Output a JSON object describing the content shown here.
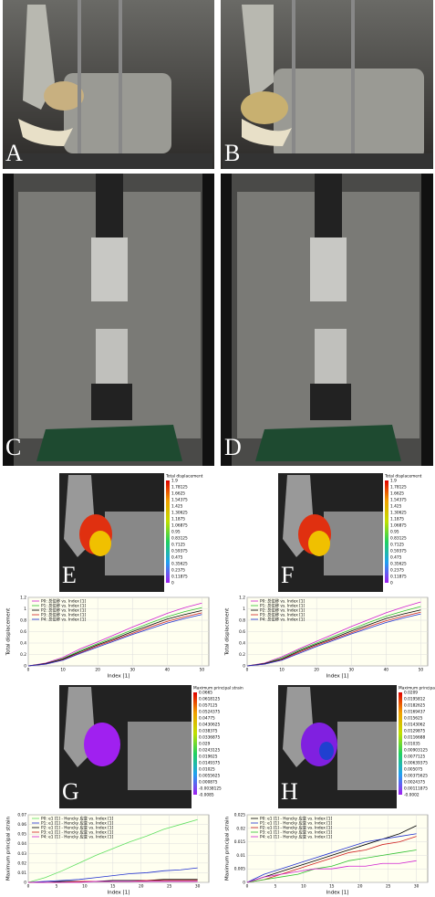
{
  "panels": [
    {
      "label": "A"
    },
    {
      "label": "B"
    },
    {
      "label": "C"
    },
    {
      "label": "D"
    },
    {
      "label": "E"
    },
    {
      "label": "F"
    },
    {
      "label": "G"
    },
    {
      "label": "H"
    }
  ],
  "colorbars": [
    {
      "title": "Total displacement",
      "labels": [
        1.9,
        1.78125,
        1.6625,
        1.54375,
        1.425,
        1.30625,
        1.1875,
        1.06875,
        0.95,
        0.83125,
        0.7125,
        0.59375,
        0.475,
        0.35625,
        0.2375,
        0.11875,
        0
      ]
    },
    {
      "title": "Total displacement",
      "labels": [
        1.9,
        1.78125,
        1.6625,
        1.54375,
        1.425,
        1.30625,
        1.1875,
        1.06875,
        0.95,
        0.83125,
        0.7125,
        0.59375,
        0.475,
        0.35625,
        0.2375,
        0.11875,
        0
      ]
    },
    {
      "title": "Maximum principal strain",
      "labels": [
        0.0665,
        0.0618125,
        0.057125,
        0.0524375,
        0.04775,
        0.0430625,
        0.038375,
        0.0336875,
        0.029,
        0.0243125,
        0.019625,
        0.0149375,
        0.01025,
        0.0055625,
        0.000875,
        -0.0038125,
        -0.0085
      ]
    },
    {
      "title": "Maximum principal strain",
      "labels": [
        0.0209,
        0.0195812,
        0.0182625,
        0.0169437,
        0.015625,
        0.0143062,
        0.0129875,
        0.0116688,
        0.01035,
        0.00903125,
        0.0077125,
        0.00639375,
        0.005075,
        0.00375625,
        0.0024375,
        0.00111875,
        -0.0002
      ]
    }
  ],
  "chart_data": [
    {
      "type": "line",
      "x_label": "Index [1]",
      "y_label": "Total displacement",
      "x": [
        0,
        5,
        10,
        15,
        20,
        25,
        30,
        35,
        40,
        45,
        50
      ],
      "xlim": [
        0,
        52
      ],
      "xticks": [
        0,
        10,
        20,
        30,
        40,
        50
      ],
      "ylim": [
        0,
        1.2
      ],
      "yticks": [
        0,
        0.2,
        0.4,
        0.6,
        0.8,
        1,
        1.2
      ],
      "series": [
        {
          "name": "P0: 总位移 vs. Index [1]",
          "color": "#d020d0",
          "values": [
            0,
            0.05,
            0.15,
            0.3,
            0.42,
            0.55,
            0.68,
            0.8,
            0.92,
            1.02,
            1.1
          ]
        },
        {
          "name": "P1: 总位移 vs. Index [1]",
          "color": "#30c030",
          "values": [
            0,
            0.04,
            0.13,
            0.27,
            0.39,
            0.51,
            0.63,
            0.75,
            0.86,
            0.95,
            1.02
          ]
        },
        {
          "name": "P2: 总位移 vs. Index [1]",
          "color": "#000000",
          "values": [
            0,
            0.04,
            0.12,
            0.25,
            0.37,
            0.48,
            0.6,
            0.71,
            0.82,
            0.9,
            0.97
          ]
        },
        {
          "name": "P3: 总位移 vs. Index [1]",
          "color": "#d02020",
          "values": [
            0,
            0.03,
            0.11,
            0.23,
            0.35,
            0.46,
            0.57,
            0.68,
            0.78,
            0.86,
            0.93
          ]
        },
        {
          "name": "P4: 总位移 vs. Index [1]",
          "color": "#2030d0",
          "values": [
            0,
            0.03,
            0.1,
            0.22,
            0.33,
            0.44,
            0.55,
            0.65,
            0.75,
            0.83,
            0.9
          ]
        }
      ]
    },
    {
      "type": "line",
      "x_label": "Index [1]",
      "y_label": "Total displacement",
      "x": [
        0,
        5,
        10,
        15,
        20,
        25,
        30,
        35,
        40,
        45,
        50
      ],
      "xlim": [
        0,
        52
      ],
      "xticks": [
        0,
        10,
        20,
        30,
        40,
        50
      ],
      "ylim": [
        0,
        1.2
      ],
      "yticks": [
        0,
        0.2,
        0.4,
        0.6,
        0.8,
        1,
        1.2
      ],
      "series": [
        {
          "name": "P0: 总位移 vs. Index [1]",
          "color": "#d020d0",
          "values": [
            0,
            0.05,
            0.16,
            0.3,
            0.43,
            0.56,
            0.69,
            0.81,
            0.93,
            1.03,
            1.12
          ]
        },
        {
          "name": "P1: 总位移 vs. Index [1]",
          "color": "#30c030",
          "values": [
            0,
            0.04,
            0.14,
            0.28,
            0.4,
            0.52,
            0.64,
            0.76,
            0.87,
            0.96,
            1.04
          ]
        },
        {
          "name": "P2: 总位移 vs. Index [1]",
          "color": "#000000",
          "values": [
            0,
            0.04,
            0.12,
            0.26,
            0.38,
            0.49,
            0.61,
            0.72,
            0.83,
            0.91,
            0.98
          ]
        },
        {
          "name": "P3: 总位移 vs. Index [1]",
          "color": "#d02020",
          "values": [
            0,
            0.03,
            0.11,
            0.24,
            0.36,
            0.47,
            0.58,
            0.69,
            0.79,
            0.87,
            0.94
          ]
        },
        {
          "name": "P4: 总位移 vs. Index [1]",
          "color": "#2030d0",
          "values": [
            0,
            0.03,
            0.1,
            0.22,
            0.34,
            0.45,
            0.56,
            0.66,
            0.76,
            0.84,
            0.91
          ]
        }
      ]
    },
    {
      "type": "line",
      "x_label": "Index [1]",
      "y_label": "Maximum principal strain",
      "x": [
        0,
        3,
        6,
        9,
        12,
        15,
        18,
        21,
        24,
        27,
        30
      ],
      "xlim": [
        0,
        32
      ],
      "xticks": [
        0,
        5,
        10,
        15,
        20,
        25,
        30
      ],
      "ylim": [
        0,
        0.07
      ],
      "yticks": [
        0,
        0.01,
        0.02,
        0.03,
        0.04,
        0.05,
        0.06,
        0.07
      ],
      "series": [
        {
          "name": "P0: e1 [1] - Hencky 应变 vs. Index [1]",
          "color": "#60e060",
          "values": [
            0,
            0.005,
            0.012,
            0.02,
            0.028,
            0.035,
            0.042,
            0.048,
            0.055,
            0.06,
            0.065
          ]
        },
        {
          "name": "P1: e1 [1] - Hencky 应变 vs. Index [1]",
          "color": "#2030d0",
          "values": [
            0,
            0.001,
            0.002,
            0.003,
            0.005,
            0.007,
            0.009,
            0.01,
            0.012,
            0.013,
            0.015
          ]
        },
        {
          "name": "P2: e1 [1] - Hencky 应变 vs. Index [1]",
          "color": "#000000",
          "values": [
            0,
            0,
            0.001,
            0.001,
            0.001,
            0.002,
            0.002,
            0.002,
            0.003,
            0.003,
            0.003
          ]
        },
        {
          "name": "P3: e1 [1] - Hencky 应变 vs. Index [1]",
          "color": "#d02020",
          "values": [
            0,
            0,
            0,
            0.001,
            0.001,
            0.001,
            0.001,
            0.002,
            0.002,
            0.002,
            0.002
          ]
        },
        {
          "name": "P4: e1 [1] - Hencky 应变 vs. Index [1]",
          "color": "#d020d0",
          "values": [
            0,
            0,
            0,
            0,
            0.001,
            0.001,
            0.001,
            0.001,
            0.001,
            0.001,
            0.001
          ]
        }
      ]
    },
    {
      "type": "line",
      "x_label": "Index [1]",
      "y_label": "Maximum principal strain",
      "x": [
        0,
        3,
        6,
        9,
        12,
        15,
        18,
        21,
        24,
        27,
        30
      ],
      "xlim": [
        0,
        32
      ],
      "xticks": [
        0,
        5,
        10,
        15,
        20,
        25,
        30
      ],
      "ylim": [
        0,
        0.025
      ],
      "yticks": [
        0,
        0.005,
        0.01,
        0.015,
        0.02,
        0.025
      ],
      "series": [
        {
          "name": "P0: e1 [1] - Hencky 应变 vs. Index [1]",
          "color": "#000000",
          "values": [
            0,
            0.002,
            0.004,
            0.006,
            0.008,
            0.01,
            0.012,
            0.014,
            0.016,
            0.018,
            0.021
          ]
        },
        {
          "name": "P1: e1 [1] - Hencky 应变 vs. Index [1]",
          "color": "#2030d0",
          "values": [
            0,
            0.003,
            0.005,
            0.007,
            0.009,
            0.011,
            0.013,
            0.015,
            0.016,
            0.017,
            0.018
          ]
        },
        {
          "name": "P2: e1 [1] - Hencky 应变 vs. Index [1]",
          "color": "#d02020",
          "values": [
            0,
            0.001,
            0.003,
            0.005,
            0.007,
            0.009,
            0.011,
            0.012,
            0.014,
            0.015,
            0.017
          ]
        },
        {
          "name": "P3: e1 [1] - Hencky 应变 vs. Index [1]",
          "color": "#30c030",
          "values": [
            0,
            0.001,
            0.002,
            0.003,
            0.005,
            0.006,
            0.008,
            0.009,
            0.01,
            0.011,
            0.012
          ]
        },
        {
          "name": "P4: e1 [1] - Hencky 应变 vs. Index [1]",
          "color": "#d020d0",
          "values": [
            0,
            0.002,
            0.003,
            0.004,
            0.005,
            0.005,
            0.006,
            0.006,
            0.007,
            0.007,
            0.008
          ]
        }
      ]
    }
  ]
}
